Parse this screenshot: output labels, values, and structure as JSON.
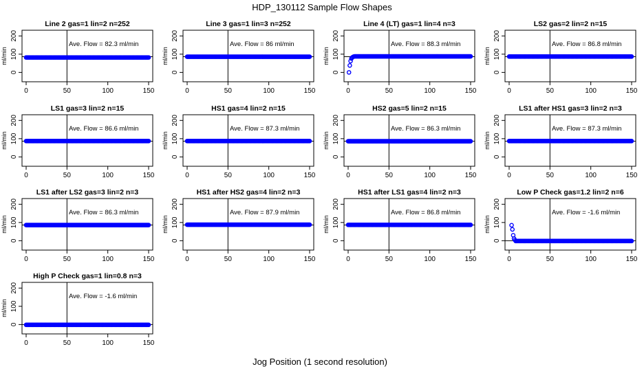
{
  "figure": {
    "title": "HDP_130112  Sample Flow Shapes",
    "xlabel": "Jog Position (1 second resolution)"
  },
  "chart_data": [
    {
      "type": "scatter",
      "title": "Line 2 gas=1 lin=2 n=252",
      "ylabel": "ml/min",
      "xlim": [
        0,
        150
      ],
      "ylim": [
        -40,
        220
      ],
      "xticks": [
        0,
        50,
        100,
        150
      ],
      "yticks": [
        0,
        100,
        200
      ],
      "vline": 50,
      "hline": 86,
      "annotation": "Ave. Flow =  82.3  ml/min",
      "shape": "flat",
      "level": 82,
      "marker_color": "#0000ff"
    },
    {
      "type": "scatter",
      "title": "Line 3 gas=1 lin=3 n=252",
      "ylabel": "ml/min",
      "xlim": [
        0,
        150
      ],
      "ylim": [
        -40,
        220
      ],
      "xticks": [
        0,
        50,
        100,
        150
      ],
      "yticks": [
        0,
        100,
        200
      ],
      "vline": 50,
      "hline": 86,
      "annotation": "Ave. Flow =  86  ml/min",
      "shape": "flat",
      "level": 86,
      "marker_color": "#0000ff"
    },
    {
      "type": "scatter",
      "title": "Line 4 (LT) gas=1 lin=4 n=3",
      "ylabel": "ml/min",
      "xlim": [
        0,
        150
      ],
      "ylim": [
        -40,
        220
      ],
      "xticks": [
        0,
        50,
        100,
        150
      ],
      "yticks": [
        0,
        100,
        200
      ],
      "vline": 50,
      "hline": 86,
      "annotation": "Ave. Flow =  88.3  ml/min",
      "shape": "rise",
      "level": 88,
      "initial_points": [
        [
          1,
          0
        ],
        [
          2,
          38
        ],
        [
          3,
          62
        ],
        [
          4,
          76
        ],
        [
          5,
          82
        ],
        [
          6,
          85
        ],
        [
          7,
          87
        ]
      ],
      "marker_color": "#0000ff"
    },
    {
      "type": "scatter",
      "title": "LS2 gas=2 lin=2 n=15",
      "ylabel": "ml/min",
      "xlim": [
        0,
        150
      ],
      "ylim": [
        -40,
        220
      ],
      "xticks": [
        0,
        50,
        100,
        150
      ],
      "yticks": [
        0,
        100,
        200
      ],
      "vline": 50,
      "hline": 86,
      "annotation": "Ave. Flow =  86.8  ml/min",
      "shape": "flat",
      "level": 87,
      "marker_color": "#0000ff"
    },
    {
      "type": "scatter",
      "title": "LS1 gas=3 lin=2 n=15",
      "ylabel": "ml/min",
      "xlim": [
        0,
        150
      ],
      "ylim": [
        -40,
        220
      ],
      "xticks": [
        0,
        50,
        100,
        150
      ],
      "yticks": [
        0,
        100,
        200
      ],
      "vline": 50,
      "hline": 86,
      "annotation": "Ave. Flow =  86.6  ml/min",
      "shape": "flat",
      "level": 87,
      "marker_color": "#0000ff"
    },
    {
      "type": "scatter",
      "title": "HS1 gas=4 lin=2 n=15",
      "ylabel": "ml/min",
      "xlim": [
        0,
        150
      ],
      "ylim": [
        -40,
        220
      ],
      "xticks": [
        0,
        50,
        100,
        150
      ],
      "yticks": [
        0,
        100,
        200
      ],
      "vline": 50,
      "hline": 86,
      "annotation": "Ave. Flow =  87.3  ml/min",
      "shape": "flat",
      "level": 87,
      "marker_color": "#0000ff"
    },
    {
      "type": "scatter",
      "title": "HS2 gas=5 lin=2 n=15",
      "ylabel": "ml/min",
      "xlim": [
        0,
        150
      ],
      "ylim": [
        -40,
        220
      ],
      "xticks": [
        0,
        50,
        100,
        150
      ],
      "yticks": [
        0,
        100,
        200
      ],
      "vline": 50,
      "hline": 86,
      "annotation": "Ave. Flow =  86.3  ml/min",
      "shape": "flat",
      "level": 86,
      "marker_color": "#0000ff"
    },
    {
      "type": "scatter",
      "title": "LS1 after HS1 gas=3 lin=2 n=3",
      "ylabel": "ml/min",
      "xlim": [
        0,
        150
      ],
      "ylim": [
        -40,
        220
      ],
      "xticks": [
        0,
        50,
        100,
        150
      ],
      "yticks": [
        0,
        100,
        200
      ],
      "vline": 50,
      "hline": 86,
      "annotation": "Ave. Flow =  87.3  ml/min",
      "shape": "flat",
      "level": 87,
      "marker_color": "#0000ff"
    },
    {
      "type": "scatter",
      "title": "LS1 after LS2 gas=3 lin=2 n=3",
      "ylabel": "ml/min",
      "xlim": [
        0,
        150
      ],
      "ylim": [
        -40,
        220
      ],
      "xticks": [
        0,
        50,
        100,
        150
      ],
      "yticks": [
        0,
        100,
        200
      ],
      "vline": 50,
      "hline": 86,
      "annotation": "Ave. Flow =  86.3  ml/min",
      "shape": "flat",
      "level": 86,
      "marker_color": "#0000ff"
    },
    {
      "type": "scatter",
      "title": "HS1 after HS2 gas=4 lin=2 n=3",
      "ylabel": "ml/min",
      "xlim": [
        0,
        150
      ],
      "ylim": [
        -40,
        220
      ],
      "xticks": [
        0,
        50,
        100,
        150
      ],
      "yticks": [
        0,
        100,
        200
      ],
      "vline": 50,
      "hline": 86,
      "annotation": "Ave. Flow =  87.9  ml/min",
      "shape": "flat",
      "level": 88,
      "marker_color": "#0000ff"
    },
    {
      "type": "scatter",
      "title": "HS1 after LS1 gas=4 lin=2 n=3",
      "ylabel": "ml/min",
      "xlim": [
        0,
        150
      ],
      "ylim": [
        -40,
        220
      ],
      "xticks": [
        0,
        50,
        100,
        150
      ],
      "yticks": [
        0,
        100,
        200
      ],
      "vline": 50,
      "hline": 86,
      "annotation": "Ave. Flow =  86.8  ml/min",
      "shape": "flat",
      "level": 87,
      "marker_color": "#0000ff"
    },
    {
      "type": "scatter",
      "title": "Low P Check gas=1.2 lin=2 n=6",
      "ylabel": "ml/min",
      "xlim": [
        0,
        150
      ],
      "ylim": [
        -40,
        220
      ],
      "xticks": [
        0,
        50,
        100,
        150
      ],
      "yticks": [
        0,
        100,
        200
      ],
      "vline": 50,
      "hline": 0,
      "annotation": "Ave. Flow =  -1.6  ml/min",
      "shape": "decay",
      "level": -1.6,
      "initial_points": [
        [
          3,
          85
        ],
        [
          4,
          62
        ],
        [
          5,
          30
        ],
        [
          6,
          12
        ],
        [
          7,
          4
        ]
      ],
      "marker_color": "#0000ff"
    },
    {
      "type": "scatter",
      "title": "High P Check gas=1 lin=0.8 n=3",
      "ylabel": "ml/min",
      "xlim": [
        0,
        150
      ],
      "ylim": [
        -40,
        220
      ],
      "xticks": [
        0,
        50,
        100,
        150
      ],
      "yticks": [
        0,
        100,
        200
      ],
      "vline": 50,
      "hline": 0,
      "annotation": "Ave. Flow =  -1.6  ml/min",
      "shape": "flat",
      "level": -1.6,
      "marker_color": "#0000ff"
    }
  ]
}
